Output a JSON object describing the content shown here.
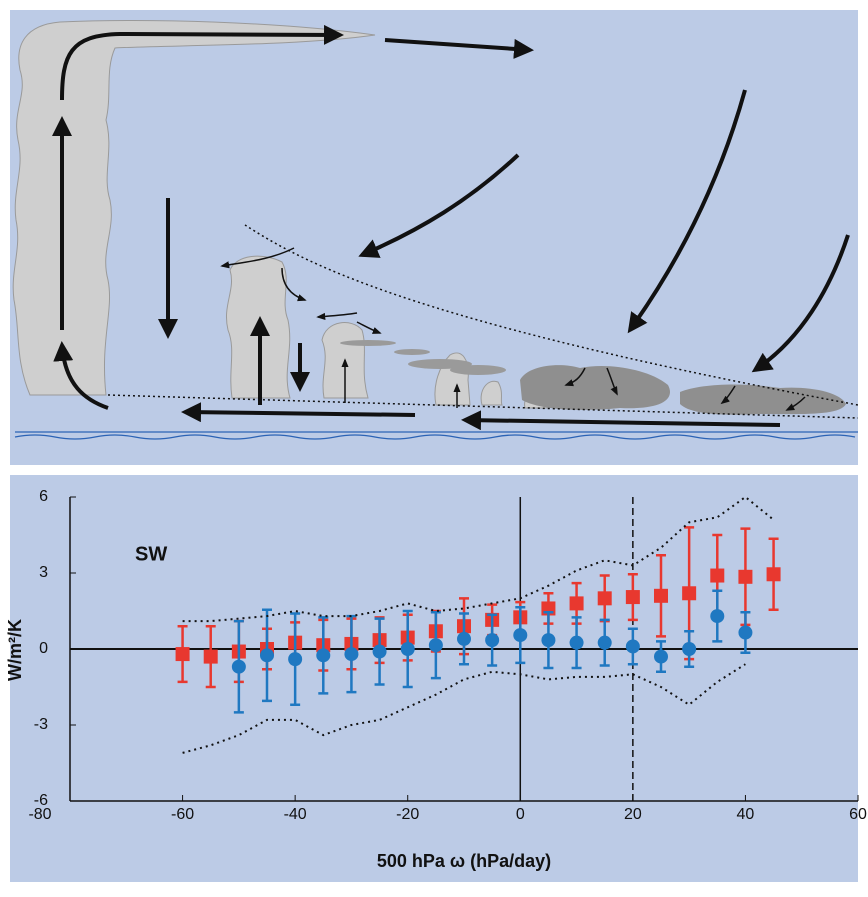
{
  "chart_data": {
    "type": "errorbar",
    "annotation": "SW",
    "ylabel": "W/m²/K",
    "xlabel": "500 hPa ω (hPa/day)",
    "xlim": [
      -80,
      60
    ],
    "xticks": [
      -80,
      -60,
      -40,
      -20,
      0,
      20,
      40,
      60
    ],
    "ylim": [
      -6,
      6
    ],
    "yticks": [
      -6,
      -3,
      0,
      3,
      6
    ],
    "reference_lines": {
      "x": [
        0,
        20
      ],
      "y": [
        0
      ]
    },
    "series": [
      {
        "color": "#e8382f",
        "marker": "square",
        "x": [
          -60,
          -55,
          -50,
          -45,
          -40,
          -35,
          -30,
          -25,
          -20,
          -15,
          -10,
          -5,
          0,
          5,
          10,
          15,
          20,
          25,
          30,
          35,
          40,
          45
        ],
        "values": [
          -0.2,
          -0.3,
          -0.1,
          0,
          0.25,
          0.15,
          0.2,
          0.35,
          0.45,
          0.7,
          0.9,
          1.15,
          1.25,
          1.6,
          1.8,
          2.0,
          2.05,
          2.1,
          2.2,
          2.9,
          2.85,
          2.95
        ],
        "errors": [
          1.1,
          1.2,
          1.2,
          0.8,
          0.8,
          1.0,
          1.0,
          0.9,
          0.9,
          0.8,
          1.1,
          0.6,
          0.6,
          0.6,
          0.8,
          0.9,
          0.9,
          1.6,
          2.6,
          1.6,
          1.9,
          1.4
        ]
      },
      {
        "color": "#1f78c1",
        "marker": "circle",
        "x": [
          -50,
          -45,
          -40,
          -35,
          -30,
          -25,
          -20,
          -15,
          -10,
          -5,
          0,
          5,
          10,
          15,
          20,
          25,
          30,
          35,
          40
        ],
        "values": [
          -0.7,
          -0.25,
          -0.4,
          -0.25,
          -0.2,
          -0.1,
          0,
          0.15,
          0.4,
          0.35,
          0.55,
          0.35,
          0.25,
          0.25,
          0.1,
          -0.3,
          0,
          1.3,
          0.65
        ],
        "errors": [
          1.8,
          1.8,
          1.8,
          1.5,
          1.5,
          1.3,
          1.5,
          1.3,
          1.0,
          1.0,
          1.1,
          1.1,
          1.0,
          0.9,
          0.7,
          0.6,
          0.7,
          1.0,
          0.8
        ]
      },
      {
        "color": "#111111",
        "marker": "dotted-line",
        "x": [
          -60,
          -55,
          -50,
          -45,
          -40,
          -35,
          -30,
          -25,
          -20,
          -15,
          -10,
          -5,
          0,
          5,
          10,
          15,
          20,
          25,
          30,
          35,
          40,
          45
        ],
        "values": [
          1.1,
          1.1,
          1.2,
          1.3,
          1.5,
          1.3,
          1.3,
          1.5,
          1.8,
          1.5,
          1.6,
          1.8,
          2.0,
          2.5,
          3.1,
          3.5,
          3.3,
          4.0,
          5.0,
          5.2,
          6.0,
          5.1
        ]
      },
      {
        "color": "#111111",
        "marker": "dotted-line",
        "x": [
          -60,
          -55,
          -50,
          -45,
          -40,
          -35,
          -30,
          -25,
          -20,
          -15,
          -10,
          -5,
          0,
          5,
          10,
          15,
          20,
          25,
          30,
          35,
          40,
          45
        ],
        "values": [
          -4.1,
          -3.8,
          -3.4,
          -2.8,
          -2.8,
          -3.4,
          -3.0,
          -2.8,
          -2.3,
          -1.8,
          -1.2,
          -0.9,
          -1.0,
          -1.2,
          -1.1,
          -1.1,
          -1.0,
          -1.5,
          -2.2,
          -1.3,
          -0.6,
          null
        ]
      }
    ]
  }
}
